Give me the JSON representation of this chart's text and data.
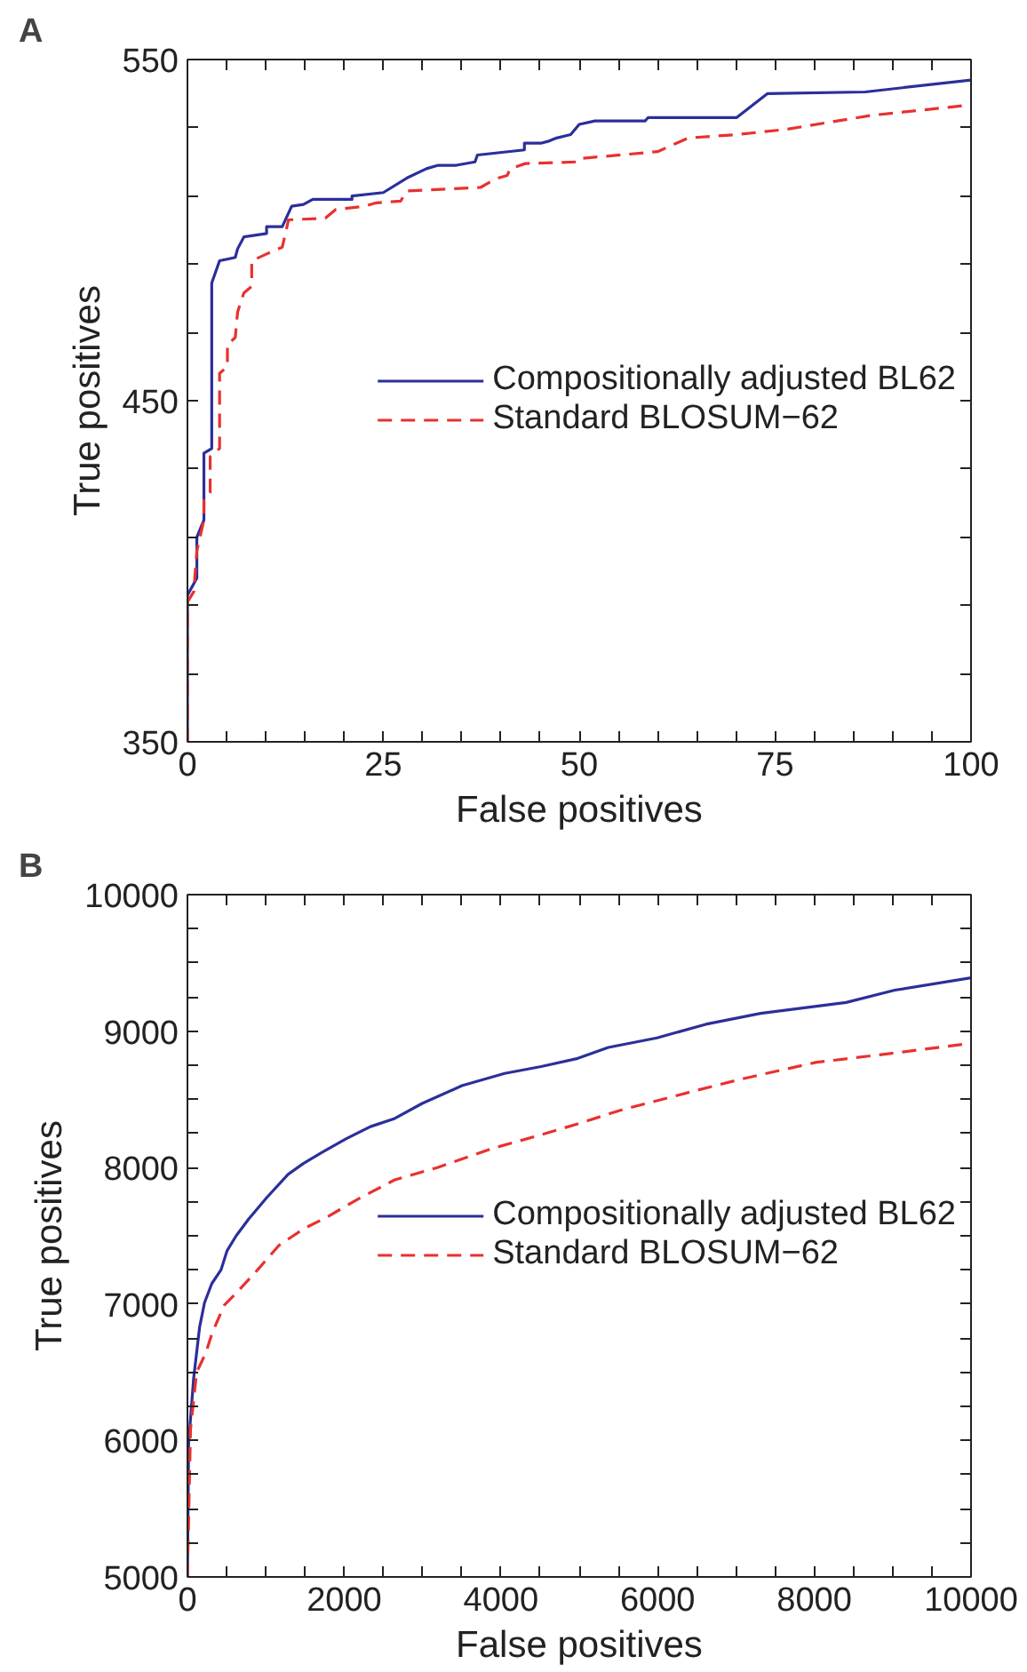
{
  "chart_data": [
    {
      "type": "line",
      "title": "A",
      "xlabel": "False positives",
      "ylabel": "True positives",
      "xlim": [
        0,
        100
      ],
      "ylim": [
        350,
        550
      ],
      "xticks": [
        0,
        {
          "value": 5,
          "label": null
        },
        {
          "value": 10,
          "label": null
        },
        {
          "value": 15,
          "label": null
        },
        {
          "value": 20,
          "label": null
        },
        25,
        {
          "value": 30,
          "label": null
        },
        {
          "value": 35,
          "label": null
        },
        {
          "value": 40,
          "label": null
        },
        {
          "value": 45,
          "label": null
        },
        50,
        {
          "value": 55,
          "label": null
        },
        {
          "value": 60,
          "label": null
        },
        {
          "value": 65,
          "label": null
        },
        {
          "value": 70,
          "label": null
        },
        75,
        {
          "value": 80,
          "label": null
        },
        {
          "value": 85,
          "label": null
        },
        {
          "value": 90,
          "label": null
        },
        {
          "value": 95,
          "label": null
        },
        100
      ],
      "yticks": [
        350,
        {
          "value": 370,
          "label": null
        },
        {
          "value": 390,
          "label": null
        },
        {
          "value": 410,
          "label": null
        },
        {
          "value": 430,
          "label": null
        },
        450,
        {
          "value": 470,
          "label": null
        },
        {
          "value": 490,
          "label": null
        },
        {
          "value": 510,
          "label": null
        },
        {
          "value": 530,
          "label": null
        },
        550
      ],
      "grid": false,
      "legend": "right",
      "marker": "none",
      "series": [
        {
          "name": "Compositionally adjusted BL62",
          "color": "#2b2f9a",
          "line_style": "solid",
          "x": [
            0,
            0,
            1.2,
            1.2,
            2.1,
            2.1,
            3.1,
            3.1,
            4.1,
            6.1,
            6.4,
            7.2,
            10.1,
            10.1,
            12.1,
            13.3,
            14.8,
            16,
            21,
            21,
            25,
            28.2,
            30.5,
            32,
            34.3,
            36.7,
            37,
            43,
            43,
            45.2,
            46,
            47.1,
            48.9,
            50,
            52,
            58.4,
            58.8,
            70.1,
            74,
            86.5,
            100
          ],
          "values": [
            350,
            393,
            398,
            410,
            415,
            434.6,
            436,
            484.5,
            491,
            492,
            494.5,
            498,
            499,
            501,
            501,
            507,
            507.5,
            509,
            509,
            510,
            511,
            515.5,
            518,
            519,
            519,
            520,
            522,
            523.5,
            525.5,
            525.5,
            526,
            527,
            528,
            531,
            532,
            532,
            533,
            533,
            540,
            540.5,
            544
          ]
        },
        {
          "name": "Standard BLOSUM−62",
          "color": "#e8312f",
          "line_style": "dashed",
          "x": [
            0,
            0,
            0.8,
            1.2,
            2.1,
            2.1,
            2.9,
            2.9,
            4.1,
            4.1,
            5.1,
            5.1,
            6.1,
            6.4,
            7.2,
            8.2,
            8.2,
            10.1,
            12.1,
            12.9,
            17.6,
            18.9,
            22.6,
            24.1,
            27.2,
            28,
            37.4,
            39.3,
            40.8,
            41.2,
            43.1,
            49.8,
            50.2,
            60,
            63.9,
            70.1,
            76.3,
            87.2,
            100
          ],
          "values": [
            350,
            391,
            394,
            406,
            415,
            421,
            423,
            433.6,
            436,
            458,
            460,
            466.5,
            468.5,
            476,
            481.6,
            483.5,
            491,
            493,
            495,
            503,
            503.5,
            506,
            507,
            508,
            508.5,
            511.5,
            512.5,
            515,
            516,
            518,
            519.5,
            520,
            521,
            523,
            527,
            528,
            529.5,
            533.6,
            536.7
          ]
        }
      ]
    },
    {
      "type": "line",
      "title": "B",
      "xlabel": "False positives",
      "ylabel": "True positives",
      "xlim": [
        0,
        10000
      ],
      "ylim": [
        5000,
        10000
      ],
      "xticks": [
        0,
        {
          "value": 500,
          "label": null
        },
        {
          "value": 1000,
          "label": null
        },
        {
          "value": 1500,
          "label": null
        },
        2000,
        {
          "value": 2500,
          "label": null
        },
        {
          "value": 3000,
          "label": null
        },
        {
          "value": 3500,
          "label": null
        },
        4000,
        {
          "value": 4500,
          "label": null
        },
        {
          "value": 5000,
          "label": null
        },
        {
          "value": 5500,
          "label": null
        },
        6000,
        {
          "value": 6500,
          "label": null
        },
        {
          "value": 7000,
          "label": null
        },
        {
          "value": 7500,
          "label": null
        },
        8000,
        {
          "value": 8500,
          "label": null
        },
        {
          "value": 9000,
          "label": null
        },
        {
          "value": 9500,
          "label": null
        },
        10000
      ],
      "yticks": [
        5000,
        {
          "value": 5250,
          "label": null
        },
        {
          "value": 5500,
          "label": null
        },
        {
          "value": 5750,
          "label": null
        },
        6000,
        {
          "value": 6250,
          "label": null
        },
        {
          "value": 6500,
          "label": null
        },
        {
          "value": 6750,
          "label": null
        },
        7000,
        {
          "value": 7250,
          "label": null
        },
        {
          "value": 7500,
          "label": null
        },
        {
          "value": 7750,
          "label": null
        },
        8000,
        {
          "value": 8250,
          "label": null
        },
        {
          "value": 8500,
          "label": null
        },
        {
          "value": 8750,
          "label": null
        },
        9000,
        {
          "value": 9250,
          "label": null
        },
        {
          "value": 9500,
          "label": null
        },
        {
          "value": 9750,
          "label": null
        },
        10000
      ],
      "grid": false,
      "legend": "right",
      "marker": "none",
      "series": [
        {
          "name": "Compositionally adjusted BL62",
          "color": "#2b2f9a",
          "line_style": "solid",
          "x": [
            0,
            15,
            78,
            155,
            218,
            311,
            428,
            505,
            622,
            778,
            1012,
            1284,
            1479,
            1712,
            2023,
            2335,
            2646,
            2996,
            3503,
            4047,
            4514,
            4981,
            5371,
            5992,
            6615,
            7316,
            8406,
            9027,
            10000
          ],
          "values": [
            5000,
            5980,
            6450,
            6830,
            7010,
            7150,
            7250,
            7390,
            7500,
            7620,
            7780,
            7950,
            8030,
            8110,
            8210,
            8300,
            8360,
            8470,
            8600,
            8690,
            8740,
            8800,
            8880,
            8950,
            9050,
            9130,
            9210,
            9300,
            9390
          ]
        },
        {
          "name": "Standard BLOSUM−62",
          "color": "#e8312f",
          "line_style": "dashed",
          "x": [
            0,
            39,
            117,
            233,
            311,
            467,
            622,
            894,
            1168,
            1479,
            1789,
            2179,
            2646,
            3190,
            3891,
            4514,
            4981,
            5525,
            6459,
            7082,
            8016,
            9027,
            10000
          ],
          "values": [
            5000,
            6080,
            6500,
            6640,
            6780,
            6990,
            7080,
            7250,
            7430,
            7550,
            7640,
            7770,
            7910,
            8000,
            8140,
            8240,
            8320,
            8420,
            8560,
            8650,
            8770,
            8840,
            8910
          ]
        }
      ]
    }
  ]
}
